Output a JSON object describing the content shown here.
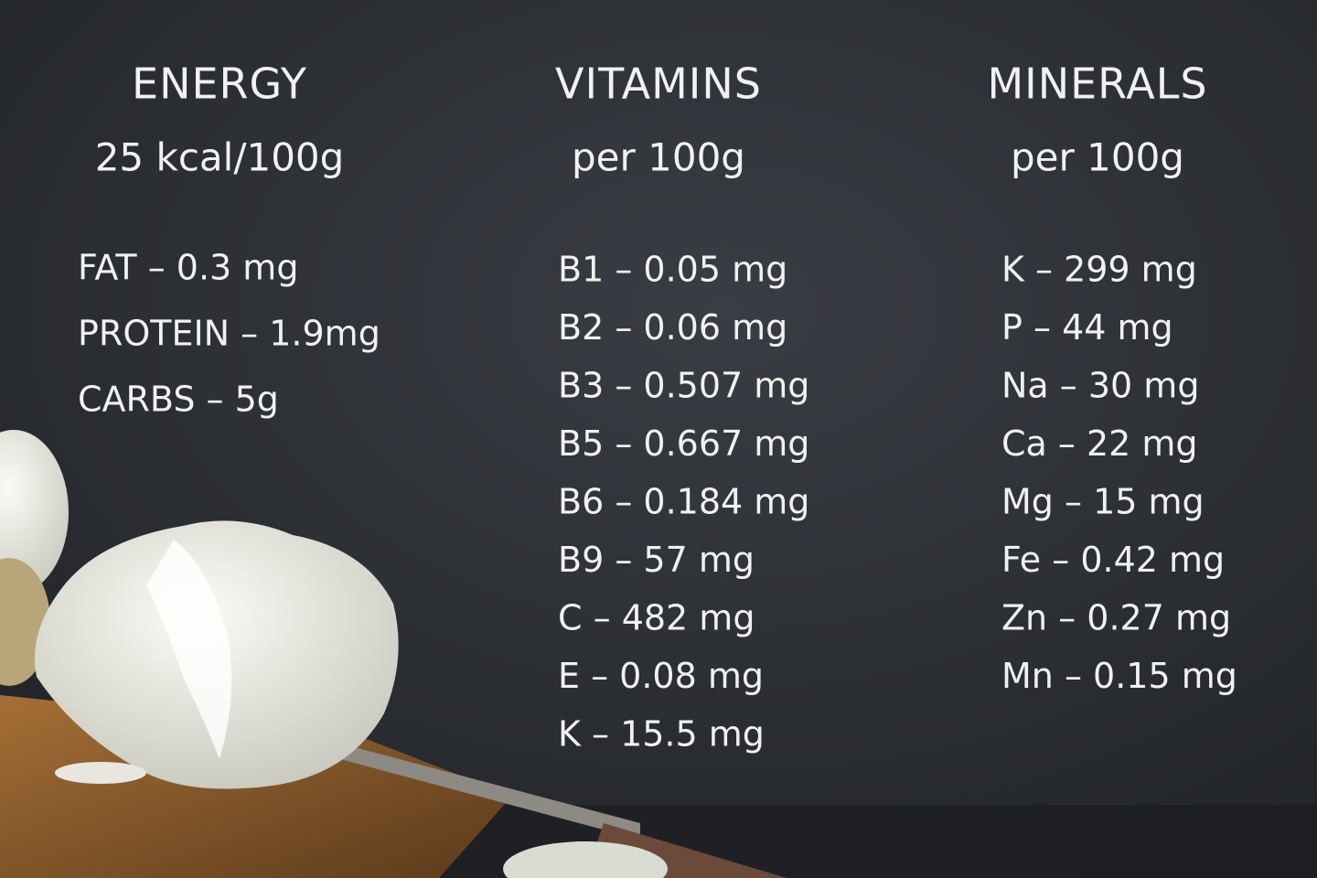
{
  "columns": [
    {
      "title": "ENERGY",
      "subtitle": "25 kcal/100g",
      "items": [
        "FAT – 0.3 mg",
        "PROTEIN – 1.9mg",
        "CARBS – 5g"
      ]
    },
    {
      "title": "VITAMINS",
      "subtitle": "per 100g",
      "items": [
        "B1 – 0.05 mg",
        "B2 – 0.06 mg",
        "B3 – 0.507 mg",
        "B5 – 0.667 mg",
        "B6 – 0.184 mg",
        "B9 – 57 mg",
        "C – 482 mg",
        "E – 0.08 mg",
        "K – 15.5 mg"
      ]
    },
    {
      "title": "MINERALS",
      "subtitle": "per 100g",
      "items": [
        "K – 299 mg",
        "P – 44 mg",
        "Na – 30 mg",
        "Ca – 22 mg",
        "Mg – 15 mg",
        "Fe – 0.42 mg",
        "Zn – 0.27 mg",
        "Mn – 0.15 mg"
      ]
    }
  ]
}
